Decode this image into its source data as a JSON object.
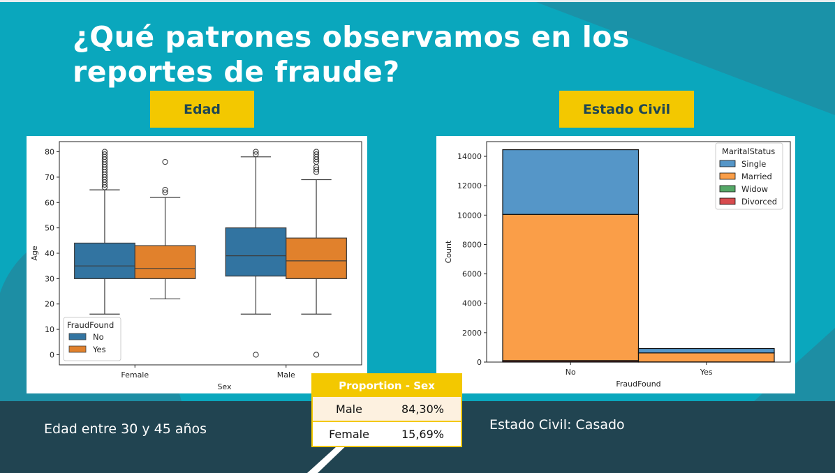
{
  "slide": {
    "title": "¿Qué patrones observamos en los reportes de fraude?",
    "tag_left": "Edad",
    "tag_right": "Estado Civil",
    "caption_left": "Edad entre 30 y 45 años",
    "caption_right": "Estado Civil: Casado",
    "colors": {
      "background_teal": "#0aa7bd",
      "dark_band": "#214451",
      "accent_yellow": "#f3c800",
      "title_text": "#ffffff"
    }
  },
  "table": {
    "header": "Proportion - Sex",
    "rows": [
      {
        "label": "Male",
        "value": "84,30%"
      },
      {
        "label": "Female",
        "value": "15,69%"
      }
    ]
  },
  "chart_data": [
    {
      "type": "box",
      "title": "",
      "xlabel": "Sex",
      "ylabel": "Age",
      "categories": [
        "Female",
        "Male"
      ],
      "ylim": [
        -4,
        84
      ],
      "yticks": [
        0,
        10,
        20,
        30,
        40,
        50,
        60,
        70,
        80
      ],
      "legend": {
        "title": "FraudFound",
        "placement": "lower-left"
      },
      "series": [
        {
          "name": "No",
          "color": "#3274a1",
          "boxes": [
            {
              "category": "Female",
              "whislo": 16,
              "q1": 30,
              "med": 35,
              "q3": 44,
              "whishi": 65,
              "fliers": [
                66,
                67,
                68,
                69,
                70,
                71,
                72,
                73,
                74,
                75,
                76,
                77,
                78,
                79,
                80
              ]
            },
            {
              "category": "Male",
              "whislo": 16,
              "q1": 31,
              "med": 39,
              "q3": 50,
              "whishi": 78,
              "fliers": [
                0,
                79,
                80
              ]
            }
          ]
        },
        {
          "name": "Yes",
          "color": "#e1812c",
          "boxes": [
            {
              "category": "Female",
              "whislo": 22,
              "q1": 30,
              "med": 34,
              "q3": 43,
              "whishi": 62,
              "fliers": [
                64,
                65,
                76
              ]
            },
            {
              "category": "Male",
              "whislo": 16,
              "q1": 30,
              "med": 37,
              "q3": 46,
              "whishi": 69,
              "fliers": [
                0,
                72,
                73,
                74,
                76,
                77,
                78,
                79,
                80
              ]
            }
          ]
        }
      ]
    },
    {
      "type": "bar",
      "stacked": true,
      "title": "",
      "xlabel": "FraudFound",
      "ylabel": "Count",
      "categories": [
        "No",
        "Yes"
      ],
      "ylim": [
        0,
        15000
      ],
      "yticks": [
        0,
        2000,
        4000,
        6000,
        8000,
        10000,
        12000,
        14000
      ],
      "legend": {
        "title": "MaritalStatus",
        "placement": "top-right"
      },
      "series": [
        {
          "name": "Divorced",
          "color": "#d84b4e",
          "values": [
            70,
            6
          ]
        },
        {
          "name": "Widow",
          "color": "#55a867",
          "values": [
            30,
            4
          ]
        },
        {
          "name": "Married",
          "color": "#fa9e48",
          "values": [
            9950,
            615
          ]
        },
        {
          "name": "Single",
          "color": "#5596c8",
          "values": [
            4400,
            300
          ]
        }
      ],
      "legend_order": [
        "Single",
        "Married",
        "Widow",
        "Divorced"
      ]
    }
  ]
}
